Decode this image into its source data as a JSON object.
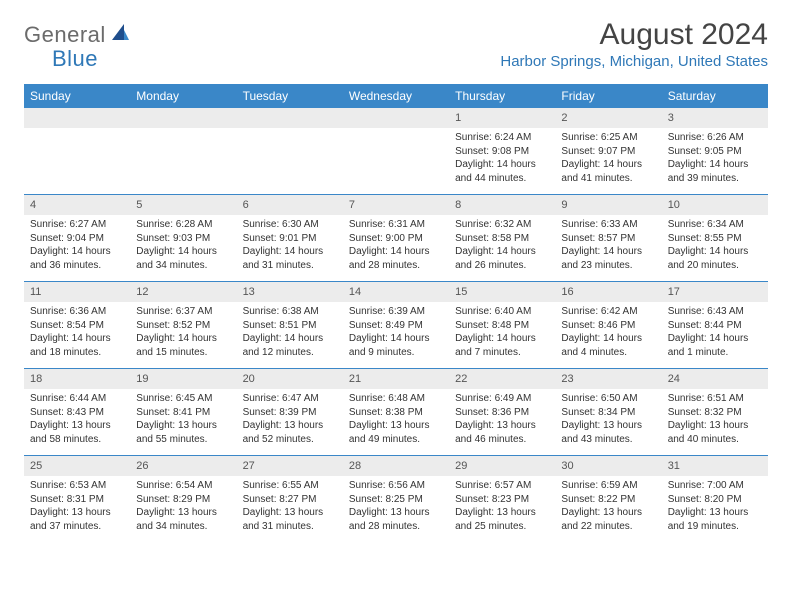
{
  "logo": {
    "text_general": "General",
    "text_blue": "Blue",
    "icon_color_dark": "#1f4e8c",
    "icon_color_light": "#3a87c8"
  },
  "title": "August 2024",
  "location": "Harbor Springs, Michigan, United States",
  "header_bg": "#3a87c8",
  "header_fg": "#ffffff",
  "daynum_bg": "#ececec",
  "divider_color": "#3a87c8",
  "day_names": [
    "Sunday",
    "Monday",
    "Tuesday",
    "Wednesday",
    "Thursday",
    "Friday",
    "Saturday"
  ],
  "weeks": [
    [
      null,
      null,
      null,
      null,
      {
        "n": "1",
        "sunrise": "Sunrise: 6:24 AM",
        "sunset": "Sunset: 9:08 PM",
        "day1": "Daylight: 14 hours",
        "day2": "and 44 minutes."
      },
      {
        "n": "2",
        "sunrise": "Sunrise: 6:25 AM",
        "sunset": "Sunset: 9:07 PM",
        "day1": "Daylight: 14 hours",
        "day2": "and 41 minutes."
      },
      {
        "n": "3",
        "sunrise": "Sunrise: 6:26 AM",
        "sunset": "Sunset: 9:05 PM",
        "day1": "Daylight: 14 hours",
        "day2": "and 39 minutes."
      }
    ],
    [
      {
        "n": "4",
        "sunrise": "Sunrise: 6:27 AM",
        "sunset": "Sunset: 9:04 PM",
        "day1": "Daylight: 14 hours",
        "day2": "and 36 minutes."
      },
      {
        "n": "5",
        "sunrise": "Sunrise: 6:28 AM",
        "sunset": "Sunset: 9:03 PM",
        "day1": "Daylight: 14 hours",
        "day2": "and 34 minutes."
      },
      {
        "n": "6",
        "sunrise": "Sunrise: 6:30 AM",
        "sunset": "Sunset: 9:01 PM",
        "day1": "Daylight: 14 hours",
        "day2": "and 31 minutes."
      },
      {
        "n": "7",
        "sunrise": "Sunrise: 6:31 AM",
        "sunset": "Sunset: 9:00 PM",
        "day1": "Daylight: 14 hours",
        "day2": "and 28 minutes."
      },
      {
        "n": "8",
        "sunrise": "Sunrise: 6:32 AM",
        "sunset": "Sunset: 8:58 PM",
        "day1": "Daylight: 14 hours",
        "day2": "and 26 minutes."
      },
      {
        "n": "9",
        "sunrise": "Sunrise: 6:33 AM",
        "sunset": "Sunset: 8:57 PM",
        "day1": "Daylight: 14 hours",
        "day2": "and 23 minutes."
      },
      {
        "n": "10",
        "sunrise": "Sunrise: 6:34 AM",
        "sunset": "Sunset: 8:55 PM",
        "day1": "Daylight: 14 hours",
        "day2": "and 20 minutes."
      }
    ],
    [
      {
        "n": "11",
        "sunrise": "Sunrise: 6:36 AM",
        "sunset": "Sunset: 8:54 PM",
        "day1": "Daylight: 14 hours",
        "day2": "and 18 minutes."
      },
      {
        "n": "12",
        "sunrise": "Sunrise: 6:37 AM",
        "sunset": "Sunset: 8:52 PM",
        "day1": "Daylight: 14 hours",
        "day2": "and 15 minutes."
      },
      {
        "n": "13",
        "sunrise": "Sunrise: 6:38 AM",
        "sunset": "Sunset: 8:51 PM",
        "day1": "Daylight: 14 hours",
        "day2": "and 12 minutes."
      },
      {
        "n": "14",
        "sunrise": "Sunrise: 6:39 AM",
        "sunset": "Sunset: 8:49 PM",
        "day1": "Daylight: 14 hours",
        "day2": "and 9 minutes."
      },
      {
        "n": "15",
        "sunrise": "Sunrise: 6:40 AM",
        "sunset": "Sunset: 8:48 PM",
        "day1": "Daylight: 14 hours",
        "day2": "and 7 minutes."
      },
      {
        "n": "16",
        "sunrise": "Sunrise: 6:42 AM",
        "sunset": "Sunset: 8:46 PM",
        "day1": "Daylight: 14 hours",
        "day2": "and 4 minutes."
      },
      {
        "n": "17",
        "sunrise": "Sunrise: 6:43 AM",
        "sunset": "Sunset: 8:44 PM",
        "day1": "Daylight: 14 hours",
        "day2": "and 1 minute."
      }
    ],
    [
      {
        "n": "18",
        "sunrise": "Sunrise: 6:44 AM",
        "sunset": "Sunset: 8:43 PM",
        "day1": "Daylight: 13 hours",
        "day2": "and 58 minutes."
      },
      {
        "n": "19",
        "sunrise": "Sunrise: 6:45 AM",
        "sunset": "Sunset: 8:41 PM",
        "day1": "Daylight: 13 hours",
        "day2": "and 55 minutes."
      },
      {
        "n": "20",
        "sunrise": "Sunrise: 6:47 AM",
        "sunset": "Sunset: 8:39 PM",
        "day1": "Daylight: 13 hours",
        "day2": "and 52 minutes."
      },
      {
        "n": "21",
        "sunrise": "Sunrise: 6:48 AM",
        "sunset": "Sunset: 8:38 PM",
        "day1": "Daylight: 13 hours",
        "day2": "and 49 minutes."
      },
      {
        "n": "22",
        "sunrise": "Sunrise: 6:49 AM",
        "sunset": "Sunset: 8:36 PM",
        "day1": "Daylight: 13 hours",
        "day2": "and 46 minutes."
      },
      {
        "n": "23",
        "sunrise": "Sunrise: 6:50 AM",
        "sunset": "Sunset: 8:34 PM",
        "day1": "Daylight: 13 hours",
        "day2": "and 43 minutes."
      },
      {
        "n": "24",
        "sunrise": "Sunrise: 6:51 AM",
        "sunset": "Sunset: 8:32 PM",
        "day1": "Daylight: 13 hours",
        "day2": "and 40 minutes."
      }
    ],
    [
      {
        "n": "25",
        "sunrise": "Sunrise: 6:53 AM",
        "sunset": "Sunset: 8:31 PM",
        "day1": "Daylight: 13 hours",
        "day2": "and 37 minutes."
      },
      {
        "n": "26",
        "sunrise": "Sunrise: 6:54 AM",
        "sunset": "Sunset: 8:29 PM",
        "day1": "Daylight: 13 hours",
        "day2": "and 34 minutes."
      },
      {
        "n": "27",
        "sunrise": "Sunrise: 6:55 AM",
        "sunset": "Sunset: 8:27 PM",
        "day1": "Daylight: 13 hours",
        "day2": "and 31 minutes."
      },
      {
        "n": "28",
        "sunrise": "Sunrise: 6:56 AM",
        "sunset": "Sunset: 8:25 PM",
        "day1": "Daylight: 13 hours",
        "day2": "and 28 minutes."
      },
      {
        "n": "29",
        "sunrise": "Sunrise: 6:57 AM",
        "sunset": "Sunset: 8:23 PM",
        "day1": "Daylight: 13 hours",
        "day2": "and 25 minutes."
      },
      {
        "n": "30",
        "sunrise": "Sunrise: 6:59 AM",
        "sunset": "Sunset: 8:22 PM",
        "day1": "Daylight: 13 hours",
        "day2": "and 22 minutes."
      },
      {
        "n": "31",
        "sunrise": "Sunrise: 7:00 AM",
        "sunset": "Sunset: 8:20 PM",
        "day1": "Daylight: 13 hours",
        "day2": "and 19 minutes."
      }
    ]
  ]
}
